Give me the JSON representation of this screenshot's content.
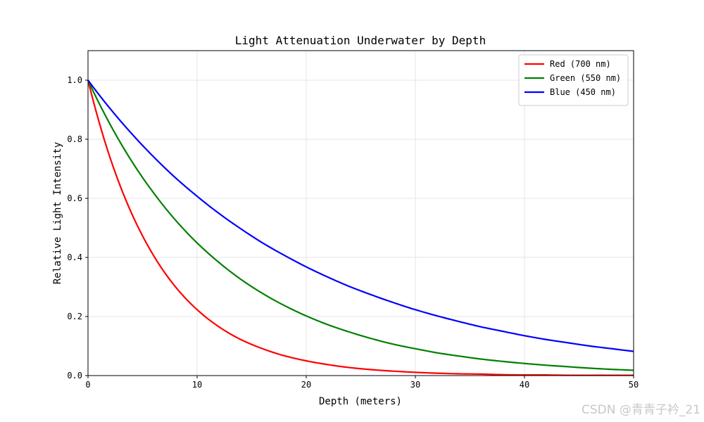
{
  "chart_data": {
    "type": "line",
    "title": "Light Attenuation Underwater by Depth",
    "xlabel": "Depth (meters)",
    "ylabel": "Relative Light Intensity",
    "xlim": [
      0,
      50
    ],
    "ylim": [
      0,
      1.1
    ],
    "xticks": [
      "0",
      "10",
      "20",
      "30",
      "40",
      "50"
    ],
    "yticks": [
      "0.0",
      "0.2",
      "0.4",
      "0.6",
      "0.8",
      "1.0"
    ],
    "grid": true,
    "legend_position": "top-right",
    "x": [
      0,
      2,
      4,
      6,
      8,
      10,
      12,
      14,
      16,
      18,
      20,
      22,
      24,
      26,
      28,
      30,
      32,
      34,
      36,
      38,
      40,
      42,
      44,
      46,
      48,
      50
    ],
    "series": [
      {
        "name": "Red (700 nm)",
        "color": "#ff0000",
        "values": [
          1.0,
          0.74,
          0.549,
          0.407,
          0.301,
          0.223,
          0.165,
          0.122,
          0.091,
          0.067,
          0.05,
          0.037,
          0.027,
          0.02,
          0.015,
          0.011,
          0.008,
          0.006,
          0.005,
          0.003,
          0.002,
          0.002,
          0.001,
          0.001,
          0.001,
          0.001
        ]
      },
      {
        "name": "Green (550 nm)",
        "color": "#008000",
        "values": [
          1.0,
          0.852,
          0.726,
          0.619,
          0.527,
          0.449,
          0.383,
          0.326,
          0.278,
          0.237,
          0.202,
          0.172,
          0.147,
          0.125,
          0.106,
          0.091,
          0.077,
          0.066,
          0.056,
          0.048,
          0.041,
          0.035,
          0.03,
          0.025,
          0.021,
          0.018
        ]
      },
      {
        "name": "Blue (450 nm)",
        "color": "#0000ff",
        "values": [
          1.0,
          0.905,
          0.819,
          0.741,
          0.67,
          0.607,
          0.549,
          0.497,
          0.449,
          0.407,
          0.368,
          0.333,
          0.301,
          0.273,
          0.247,
          0.223,
          0.202,
          0.183,
          0.165,
          0.15,
          0.135,
          0.122,
          0.111,
          0.1,
          0.091,
          0.082
        ]
      }
    ]
  },
  "watermark": "CSDN @青青子衿_21"
}
